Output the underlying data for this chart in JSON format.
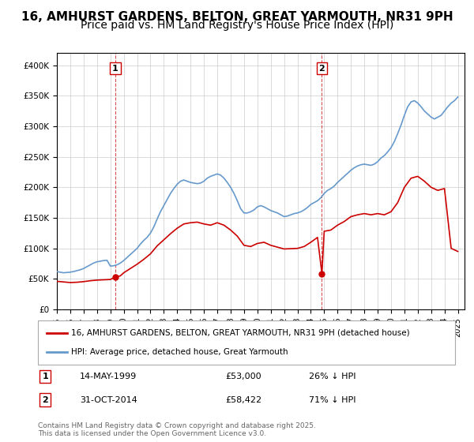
{
  "title": "16, AMHURST GARDENS, BELTON, GREAT YARMOUTH, NR31 9PH",
  "subtitle": "Price paid vs. HM Land Registry's House Price Index (HPI)",
  "title_fontsize": 11,
  "subtitle_fontsize": 10,
  "legend_line1": "16, AMHURST GARDENS, BELTON, GREAT YARMOUTH, NR31 9PH (detached house)",
  "legend_line2": "HPI: Average price, detached house, Great Yarmouth",
  "sale1_label": "1",
  "sale1_date": "14-MAY-1999",
  "sale1_price": "£53,000",
  "sale1_hpi": "26% ↓ HPI",
  "sale2_label": "2",
  "sale2_date": "31-OCT-2014",
  "sale2_price": "£58,422",
  "sale2_hpi": "71% ↓ HPI",
  "footer": "Contains HM Land Registry data © Crown copyright and database right 2025.\nThis data is licensed under the Open Government Licence v3.0.",
  "red_color": "#cc0000",
  "blue_color": "#6699cc",
  "background_color": "#ffffff",
  "ylim": [
    0,
    420000
  ],
  "yticks": [
    0,
    50000,
    100000,
    150000,
    200000,
    250000,
    300000,
    350000,
    400000
  ],
  "sale1_year": 1999.37,
  "sale2_year": 2014.83,
  "sale1_price_val": 53000,
  "sale2_price_val": 58422,
  "hpi_years": [
    1995.0,
    1995.25,
    1995.5,
    1995.75,
    1996.0,
    1996.25,
    1996.5,
    1996.75,
    1997.0,
    1997.25,
    1997.5,
    1997.75,
    1998.0,
    1998.25,
    1998.5,
    1998.75,
    1999.0,
    1999.25,
    1999.5,
    1999.75,
    2000.0,
    2000.25,
    2000.5,
    2000.75,
    2001.0,
    2001.25,
    2001.5,
    2001.75,
    2002.0,
    2002.25,
    2002.5,
    2002.75,
    2003.0,
    2003.25,
    2003.5,
    2003.75,
    2004.0,
    2004.25,
    2004.5,
    2004.75,
    2005.0,
    2005.25,
    2005.5,
    2005.75,
    2006.0,
    2006.25,
    2006.5,
    2006.75,
    2007.0,
    2007.25,
    2007.5,
    2007.75,
    2008.0,
    2008.25,
    2008.5,
    2008.75,
    2009.0,
    2009.25,
    2009.5,
    2009.75,
    2010.0,
    2010.25,
    2010.5,
    2010.75,
    2011.0,
    2011.25,
    2011.5,
    2011.75,
    2012.0,
    2012.25,
    2012.5,
    2012.75,
    2013.0,
    2013.25,
    2013.5,
    2013.75,
    2014.0,
    2014.25,
    2014.5,
    2014.75,
    2015.0,
    2015.25,
    2015.5,
    2015.75,
    2016.0,
    2016.25,
    2016.5,
    2016.75,
    2017.0,
    2017.25,
    2017.5,
    2017.75,
    2018.0,
    2018.25,
    2018.5,
    2018.75,
    2019.0,
    2019.25,
    2019.5,
    2019.75,
    2020.0,
    2020.25,
    2020.5,
    2020.75,
    2021.0,
    2021.25,
    2021.5,
    2021.75,
    2022.0,
    2022.25,
    2022.5,
    2022.75,
    2023.0,
    2023.25,
    2023.5,
    2023.75,
    2024.0,
    2024.25,
    2024.5,
    2024.75,
    2025.0
  ],
  "hpi_values": [
    62000,
    61000,
    60000,
    60500,
    61000,
    62000,
    63500,
    65000,
    67000,
    70000,
    73000,
    76000,
    78000,
    79000,
    80000,
    80500,
    71000,
    71500,
    73000,
    76000,
    80000,
    85000,
    90000,
    95000,
    100000,
    107000,
    113000,
    118000,
    125000,
    135000,
    148000,
    160000,
    170000,
    180000,
    190000,
    198000,
    205000,
    210000,
    212000,
    210000,
    208000,
    207000,
    206000,
    207000,
    210000,
    215000,
    218000,
    220000,
    222000,
    220000,
    215000,
    208000,
    200000,
    190000,
    178000,
    165000,
    158000,
    158000,
    160000,
    163000,
    168000,
    170000,
    168000,
    165000,
    162000,
    160000,
    158000,
    155000,
    152000,
    153000,
    155000,
    157000,
    158000,
    160000,
    163000,
    167000,
    172000,
    175000,
    178000,
    183000,
    190000,
    195000,
    198000,
    202000,
    208000,
    213000,
    218000,
    223000,
    228000,
    232000,
    235000,
    237000,
    238000,
    237000,
    236000,
    238000,
    242000,
    248000,
    252000,
    258000,
    265000,
    275000,
    288000,
    302000,
    318000,
    332000,
    340000,
    342000,
    338000,
    332000,
    325000,
    320000,
    315000,
    312000,
    315000,
    318000,
    325000,
    332000,
    338000,
    342000,
    348000
  ],
  "red_years": [
    1995.0,
    1995.5,
    1996.0,
    1996.5,
    1997.0,
    1997.5,
    1998.0,
    1998.5,
    1999.0,
    1999.37,
    1999.75,
    2000.0,
    2000.5,
    2001.0,
    2001.5,
    2002.0,
    2002.5,
    2003.0,
    2003.5,
    2004.0,
    2004.5,
    2005.0,
    2005.5,
    2006.0,
    2006.5,
    2007.0,
    2007.5,
    2008.0,
    2008.5,
    2009.0,
    2009.5,
    2010.0,
    2010.5,
    2011.0,
    2011.5,
    2012.0,
    2012.5,
    2013.0,
    2013.5,
    2014.0,
    2014.5,
    2014.83,
    2015.0,
    2015.5,
    2016.0,
    2016.5,
    2017.0,
    2017.5,
    2018.0,
    2018.5,
    2019.0,
    2019.5,
    2020.0,
    2020.5,
    2021.0,
    2021.5,
    2022.0,
    2022.5,
    2023.0,
    2023.5,
    2024.0,
    2024.5,
    2025.0
  ],
  "red_values": [
    46000,
    45000,
    44000,
    44500,
    45500,
    47000,
    48000,
    48500,
    49000,
    53000,
    55000,
    60000,
    67000,
    74000,
    82000,
    91000,
    104000,
    114000,
    124000,
    133000,
    140000,
    142000,
    143000,
    140000,
    138000,
    142000,
    138000,
    130000,
    120000,
    105000,
    103000,
    108000,
    110000,
    105000,
    102000,
    99000,
    99500,
    100000,
    103000,
    110000,
    118000,
    58422,
    128000,
    130000,
    138000,
    144000,
    152000,
    155000,
    157000,
    155000,
    157000,
    155000,
    160000,
    175000,
    200000,
    215000,
    218000,
    210000,
    200000,
    195000,
    198000,
    100000,
    95000
  ]
}
